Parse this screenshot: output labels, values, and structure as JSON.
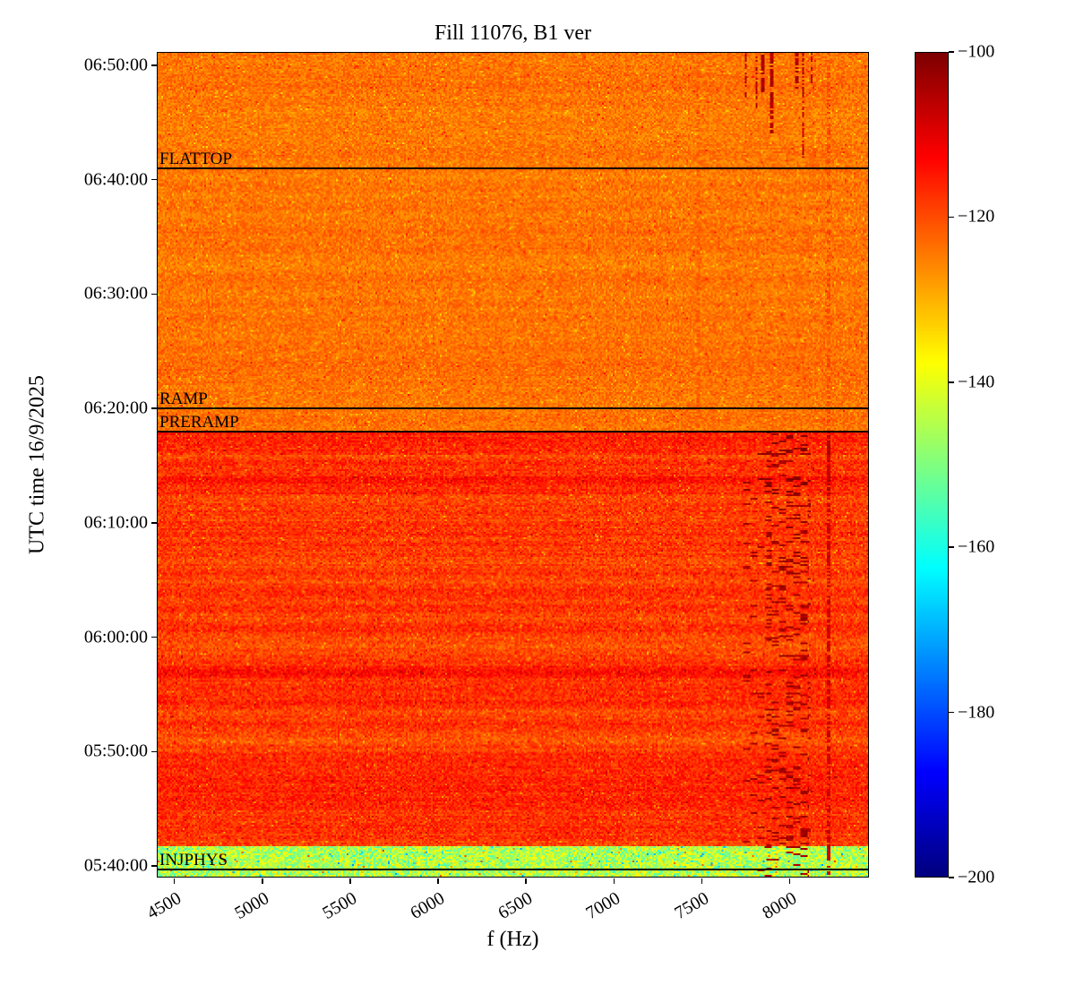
{
  "chart_data": {
    "type": "heatmap",
    "title": "Fill 11076, B1 ver",
    "xlabel": "f (Hz)",
    "ylabel": "UTC time 16/9/2025",
    "colormap": "jet",
    "background_color": "#ffffff",
    "annotation_line_color": "#000000",
    "x_range_hz": [
      4400,
      8450
    ],
    "x_ticks": [
      {
        "value": 4500,
        "label": "4500"
      },
      {
        "value": 5000,
        "label": "5000"
      },
      {
        "value": 5500,
        "label": "5500"
      },
      {
        "value": 6000,
        "label": "6000"
      },
      {
        "value": 6500,
        "label": "6500"
      },
      {
        "value": 7000,
        "label": "7000"
      },
      {
        "value": 7500,
        "label": "7500"
      },
      {
        "value": 8000,
        "label": "8000"
      }
    ],
    "y_range_utc": [
      "05:39:00",
      "06:51:10"
    ],
    "y_ticks": [
      "06:50:00",
      "06:40:00",
      "06:30:00",
      "06:20:00",
      "06:10:00",
      "06:00:00",
      "05:50:00",
      "05:40:00"
    ],
    "colorbar": {
      "min": -200,
      "max": -100,
      "ticks": [
        {
          "value": -100,
          "label": "−100"
        },
        {
          "value": -120,
          "label": "−120"
        },
        {
          "value": -140,
          "label": "−140"
        },
        {
          "value": -160,
          "label": "−160"
        },
        {
          "value": -180,
          "label": "−180"
        },
        {
          "value": -200,
          "label": "−200"
        }
      ]
    },
    "annotations": [
      {
        "label": "FLATTOP",
        "time": "06:41:00"
      },
      {
        "label": "RAMP",
        "time": "06:20:00"
      },
      {
        "label": "PRERAMP",
        "time": "06:18:00"
      },
      {
        "label": "INJPHYS",
        "time": "05:39:40"
      }
    ],
    "regions": [
      {
        "name": "flattop-upper",
        "t_from": "06:18:00",
        "t_to": "06:51:10",
        "base_db": -124,
        "noise_db": 3.6,
        "row_banding_db": 0.8
      },
      {
        "name": "preramp-lower",
        "t_from": "05:41:40",
        "t_to": "06:18:00",
        "base_db": -118,
        "noise_db": 4.2,
        "row_banding_db": 2.0
      },
      {
        "name": "injphys-band",
        "t_from": "05:39:00",
        "t_to": "05:41:40",
        "base_db": -145,
        "noise_db": 10,
        "row_banding_db": 0
      }
    ],
    "features": [
      {
        "type": "speckle",
        "name": "burst-band",
        "f_from": 7740,
        "f_to": 8120,
        "t_from": "05:39:00",
        "t_to": "06:18:00",
        "density": 0.06,
        "value_db": -101,
        "jitter_db": 7
      },
      {
        "type": "speckle",
        "name": "burst-core",
        "f_from": 7865,
        "f_to": 8110,
        "t_from": "05:39:00",
        "t_to": "06:18:00",
        "density": 0.13,
        "value_db": -100,
        "jitter_db": 7
      },
      {
        "type": "vline",
        "name": "line-8230-lower",
        "f_from": 8218,
        "f_to": 8240,
        "t_from": "05:39:00",
        "t_to": "06:18:00",
        "density": 0.65,
        "value_db": -105,
        "jitter_db": 6
      },
      {
        "type": "vline",
        "name": "line-8230-upper",
        "f_from": 8218,
        "f_to": 8240,
        "t_from": "06:18:00",
        "t_to": "06:51:10",
        "density": 0.45,
        "value_db": -117,
        "jitter_db": 5
      },
      {
        "type": "vline",
        "name": "line-7485-upper",
        "f_from": 7478,
        "f_to": 7492,
        "t_from": "06:18:00",
        "t_to": "06:51:10",
        "density": 0.4,
        "value_db": -119,
        "jitter_db": 4
      },
      {
        "type": "vline",
        "name": "streak-7750",
        "f_from": 7745,
        "f_to": 7760,
        "t_from": "06:47:00",
        "t_to": "06:51:10",
        "density": 0.5,
        "value_db": -103,
        "jitter_db": 6
      },
      {
        "type": "vline",
        "name": "streak-7813",
        "f_from": 7806,
        "f_to": 7820,
        "t_from": "06:45:30",
        "t_to": "06:51:10",
        "density": 0.55,
        "value_db": -102,
        "jitter_db": 6
      },
      {
        "type": "vline",
        "name": "streak-7850",
        "f_from": 7843,
        "f_to": 7856,
        "t_from": "06:47:30",
        "t_to": "06:51:10",
        "density": 0.8,
        "value_db": -102,
        "jitter_db": 5
      },
      {
        "type": "vline",
        "name": "streak-7900",
        "f_from": 7893,
        "f_to": 7908,
        "t_from": "06:44:00",
        "t_to": "06:51:10",
        "density": 0.65,
        "value_db": -102,
        "jitter_db": 6
      },
      {
        "type": "vline",
        "name": "streak-8043",
        "f_from": 8036,
        "f_to": 8050,
        "t_from": "06:48:00",
        "t_to": "06:51:10",
        "density": 0.7,
        "value_db": -102,
        "jitter_db": 6
      },
      {
        "type": "vline",
        "name": "streak-8078",
        "f_from": 8071,
        "f_to": 8085,
        "t_from": "06:41:20",
        "t_to": "06:51:10",
        "density": 0.6,
        "value_db": -103,
        "jitter_db": 6
      },
      {
        "type": "vline",
        "name": "streak-8129",
        "f_from": 8122,
        "f_to": 8136,
        "t_from": "06:48:30",
        "t_to": "06:51:10",
        "density": 0.45,
        "value_db": -104,
        "jitter_db": 6
      },
      {
        "type": "hband",
        "name": "red-band-0613",
        "f_from": 4400,
        "f_to": 8450,
        "t_from": "06:12:30",
        "t_to": "06:14:00",
        "delta_db": 3
      },
      {
        "type": "hband",
        "name": "red-band-0616",
        "f_from": 4400,
        "f_to": 8450,
        "t_from": "06:16:00",
        "t_to": "06:18:00",
        "delta_db": 2
      },
      {
        "type": "hband",
        "name": "red-band-0557",
        "f_from": 4400,
        "f_to": 8450,
        "t_from": "05:56:30",
        "t_to": "05:57:30",
        "delta_db": 2.5
      }
    ]
  }
}
